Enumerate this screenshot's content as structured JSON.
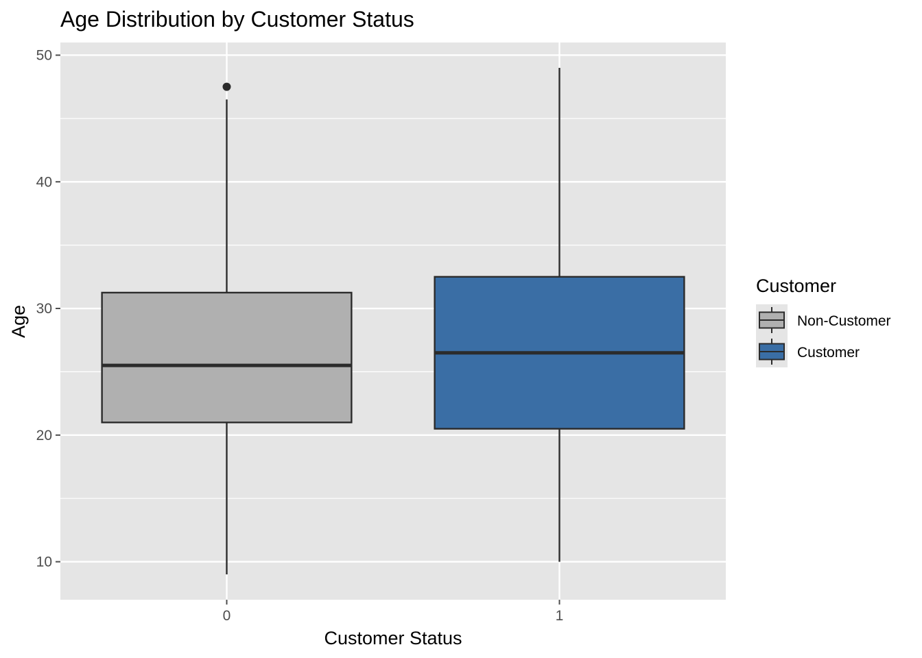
{
  "chart_data": {
    "type": "boxplot",
    "title": "Age Distribution by Customer Status",
    "xlabel": "Customer Status",
    "ylabel": "Age",
    "categories": [
      "0",
      "1"
    ],
    "ylim": [
      7,
      51
    ],
    "yticks": [
      10,
      20,
      30,
      40,
      50
    ],
    "grid": true,
    "legend": {
      "title": "Customer",
      "placement": "right",
      "entries": [
        {
          "label": "Non-Customer",
          "color": "#b0b0b0"
        },
        {
          "label": "Customer",
          "color": "#3a6ea5"
        }
      ]
    },
    "series": [
      {
        "category": "0",
        "min": 9,
        "q1": 21,
        "median": 25.5,
        "q3": 31.25,
        "max": 46.5,
        "outliers": [
          47.5
        ],
        "color": "#b0b0b0"
      },
      {
        "category": "1",
        "min": 10,
        "q1": 20.5,
        "median": 26.5,
        "q3": 32.5,
        "max": 49,
        "outliers": [],
        "color": "#3a6ea5"
      }
    ],
    "colors": {
      "panel": "#e5e5e5",
      "grid": "#ffffff",
      "outline": "#2b2b2b",
      "tick": "#4d4d4d"
    }
  }
}
